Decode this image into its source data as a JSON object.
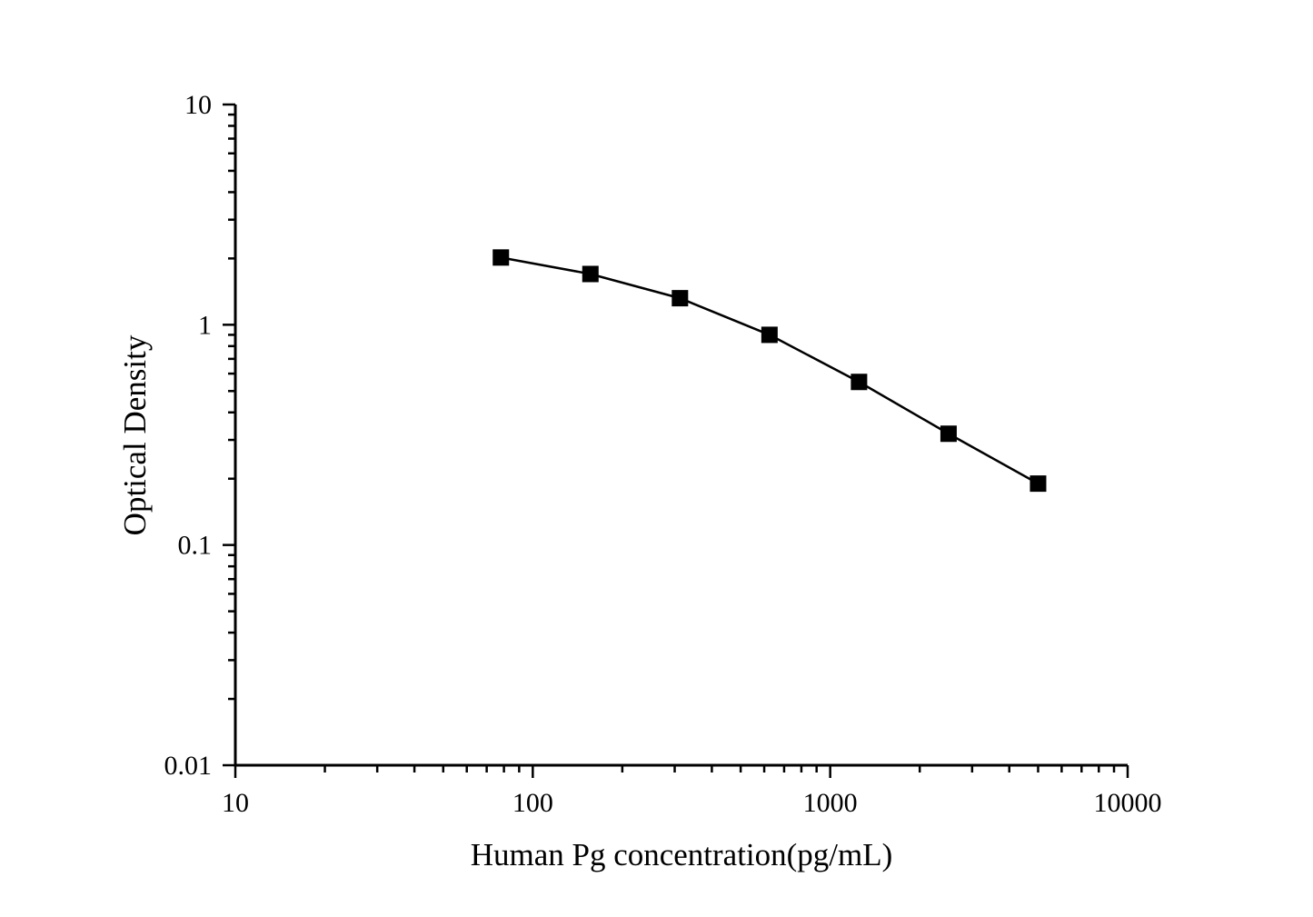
{
  "page": {
    "background_color": "#ffffff",
    "foreground_color": "#000000"
  },
  "chart_data": {
    "type": "line",
    "title": "",
    "xlabel": "Human Pg concentration(pg/mL)",
    "ylabel": "Optical Density",
    "x_scale": "log",
    "y_scale": "log",
    "xlim": [
      10,
      10000
    ],
    "ylim": [
      0.01,
      10
    ],
    "x": [
      78.125,
      156.25,
      312.5,
      625,
      1250,
      2500,
      5000
    ],
    "y": [
      2.02,
      1.7,
      1.32,
      0.9,
      0.55,
      0.32,
      0.19
    ],
    "x_ticks": [
      10,
      100,
      1000,
      10000
    ],
    "x_tick_labels": [
      "10",
      "100",
      "1000",
      "10000"
    ],
    "y_ticks": [
      0.01,
      0.1,
      1,
      10
    ],
    "y_tick_labels": [
      "0.01",
      "0.1",
      "1",
      "10"
    ],
    "minor_ticks": "log-2-to-9",
    "grid": false,
    "legend": null,
    "marker": "square",
    "marker_color": "#000000",
    "line_color": "#000000"
  }
}
